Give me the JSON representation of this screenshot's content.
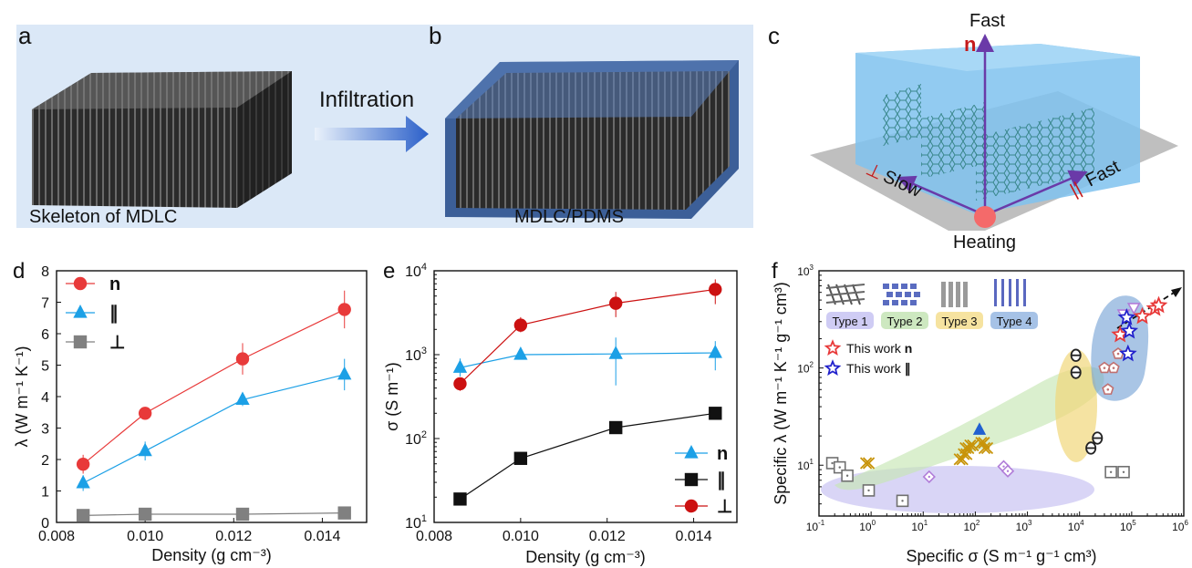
{
  "panel_labels": {
    "a": "a",
    "b": "b",
    "c": "c",
    "d": "d",
    "e": "e",
    "f": "f"
  },
  "top": {
    "a_caption": "Skeleton of MDLC",
    "b_caption": "MDLC/PDMS",
    "arrow_label": "Infiltration",
    "c_labels": {
      "fast_top": "Fast",
      "n": "n",
      "perp_symbol": "⊥",
      "slow": "Slow",
      "par_symbol": "||",
      "fast_right": "Fast",
      "heating": "Heating"
    }
  },
  "colors": {
    "n_red": "#e83a3a",
    "par_blue": "#1ca0e6",
    "perp_gray": "#808080",
    "e_red": "#cc1111",
    "e_black": "#111111"
  },
  "chart_data": [
    {
      "panel": "d",
      "type": "line",
      "xlabel": "Density (g cm⁻³)",
      "ylabel": "λ (W m⁻¹ K⁻¹)",
      "xlim": [
        0.008,
        0.015
      ],
      "ylim": [
        0,
        8
      ],
      "xticks": [
        "0.008",
        "0.010",
        "0.012",
        "0.014"
      ],
      "yticks": [
        "0",
        "1",
        "2",
        "3",
        "4",
        "5",
        "6",
        "7",
        "8"
      ],
      "legend_position": "top-left",
      "x": [
        0.0086,
        0.01,
        0.0122,
        0.0145
      ],
      "series": [
        {
          "name": "n",
          "marker": "circle",
          "color": "#e83a3a",
          "values": [
            1.85,
            3.47,
            5.2,
            6.77
          ],
          "err": [
            0.3,
            0.2,
            0.5,
            0.6
          ]
        },
        {
          "name": "∥",
          "marker": "triangle",
          "color": "#1ca0e6",
          "values": [
            1.25,
            2.27,
            3.9,
            4.7
          ],
          "err": [
            0.25,
            0.3,
            0.2,
            0.5
          ]
        },
        {
          "name": "⊥",
          "marker": "square",
          "color": "#808080",
          "values": [
            0.22,
            0.26,
            0.26,
            0.3
          ],
          "err": [
            0.03,
            0.03,
            0.03,
            0.03
          ]
        }
      ]
    },
    {
      "panel": "e",
      "type": "line",
      "xlabel": "Density (g cm⁻³)",
      "ylabel": "σ (S m⁻¹)",
      "yscale": "log",
      "xlim": [
        0.008,
        0.015
      ],
      "ylim": [
        10,
        10000
      ],
      "xticks": [
        "0.008",
        "0.010",
        "0.012",
        "0.014"
      ],
      "legend_position": "bottom-right",
      "x": [
        0.0086,
        0.01,
        0.0122,
        0.0145
      ],
      "series": [
        {
          "name": "n",
          "marker": "triangle",
          "color": "#1ca0e6",
          "values": [
            700,
            1000,
            1020,
            1050
          ],
          "err_lo": [
            550,
            950,
            430,
            650
          ],
          "err_hi": [
            900,
            1050,
            1600,
            1450
          ]
        },
        {
          "name": "∥",
          "marker": "square",
          "color": "#111111",
          "values": [
            19,
            58,
            135,
            200
          ],
          "err_lo": [
            19,
            50,
            120,
            170
          ],
          "err_hi": [
            19,
            68,
            155,
            235
          ]
        },
        {
          "name": "⊥",
          "marker": "circle",
          "color": "#cc1111",
          "values": [
            450,
            2250,
            4100,
            6000
          ],
          "err_lo": [
            370,
            1850,
            2800,
            4000
          ],
          "err_hi": [
            530,
            2800,
            5600,
            7900
          ]
        }
      ]
    },
    {
      "panel": "f",
      "type": "scatter",
      "xlabel": "Specific σ (S  m⁻¹ g⁻¹ cm³)",
      "ylabel": "Specific λ (W m⁻¹ K⁻¹ g⁻¹ cm³)",
      "xscale": "log",
      "yscale": "log",
      "xlim": [
        0.1,
        1000000
      ],
      "ylim": [
        3,
        1000
      ],
      "type_labels": [
        "Type 1",
        "Type 2",
        "Type 3",
        "Type 4"
      ],
      "legend": [
        "This work",
        "This work"
      ],
      "legend_bold": [
        "n",
        "∥"
      ],
      "series": [
        {
          "name": "Type 1",
          "marker": "square-dot",
          "color": "#707070",
          "points": [
            [
              0.18,
              10.5
            ],
            [
              0.25,
              9.5
            ],
            [
              0.35,
              7.8
            ],
            [
              0.9,
              5.5
            ],
            [
              4,
              4.3
            ],
            [
              40000,
              8.5
            ],
            [
              70000,
              8.5
            ]
          ]
        },
        {
          "name": "Type 1 diamonds",
          "marker": "diamond-dot",
          "color": "#b07cd8",
          "points": [
            [
              13,
              7.6
            ],
            [
              350,
              9.7
            ],
            [
              420,
              8.7
            ]
          ]
        },
        {
          "name": "Type 2 crosses",
          "marker": "double-x",
          "color": "#c8940a",
          "points": [
            [
              0.8,
              10.5
            ],
            [
              50,
              11.5
            ],
            [
              60,
              13
            ],
            [
              65,
              15
            ],
            [
              80,
              16
            ],
            [
              130,
              17
            ],
            [
              150,
              15
            ]
          ]
        },
        {
          "name": "Type 2 triangle",
          "marker": "triangle",
          "color": "#2060d0",
          "points": [
            [
              120,
              23
            ]
          ]
        },
        {
          "name": "Type 3",
          "marker": "theta",
          "color": "#222222",
          "points": [
            [
              8500,
              135
            ],
            [
              8500,
              90
            ],
            [
              16500,
              15
            ],
            [
              22000,
              19
            ]
          ]
        },
        {
          "name": "Type 4",
          "marker": "pentagon",
          "color": "#c07070",
          "points": [
            [
              35000,
              60
            ],
            [
              45000,
              100
            ],
            [
              55000,
              140
            ],
            [
              30000,
              100
            ]
          ]
        },
        {
          "name": "Type 4 triangles",
          "marker": "triangle-down",
          "color": "#b07cd8",
          "points": [
            [
              70000,
              360
            ],
            [
              110000,
              420
            ]
          ]
        },
        {
          "name": "This work n",
          "marker": "star",
          "color": "#e83a3a",
          "points": [
            [
              60000,
              220
            ],
            [
              160000,
              340
            ],
            [
              280000,
              410
            ],
            [
              330000,
              440
            ]
          ]
        },
        {
          "name": "This work ∥",
          "marker": "star",
          "color": "#2222cc",
          "points": [
            [
              80000,
              330
            ],
            [
              90000,
              240
            ],
            [
              85000,
              140
            ]
          ]
        }
      ]
    }
  ]
}
